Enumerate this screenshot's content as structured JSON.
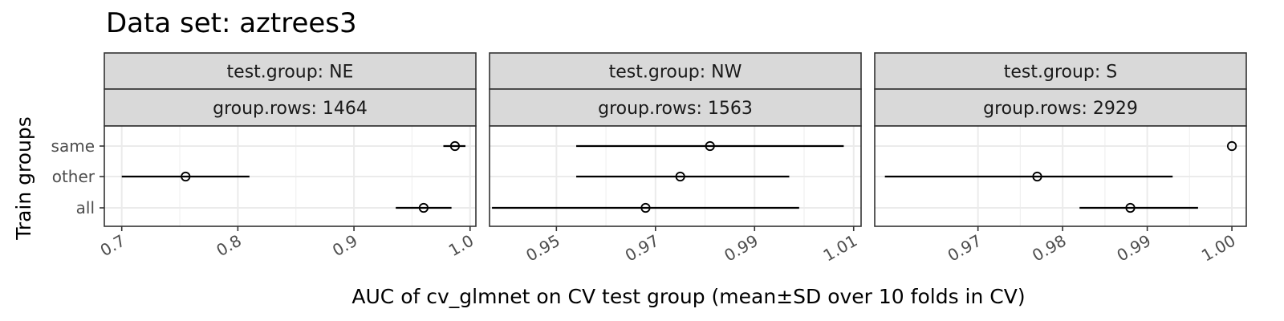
{
  "title": "Data set: aztrees3",
  "chart_data": {
    "type": "scatter",
    "subtype": "point-range facets",
    "xlabel": "AUC of cv_glmnet on CV test group (mean±SD over 10 folds in CV)",
    "ylabel": "Train groups",
    "categories": [
      "same",
      "other",
      "all"
    ],
    "grid": true,
    "panels": [
      {
        "strip1": "test.group: NE",
        "strip2": "group.rows: 1464",
        "xlim": [
          0.685,
          1.005
        ],
        "xticks": [
          0.7,
          0.8,
          0.9,
          1.0
        ],
        "xtick_labels": [
          "0.7",
          "0.8",
          "0.9",
          "1.0"
        ],
        "points": [
          {
            "group": "same",
            "mean": 0.987,
            "lo": 0.977,
            "hi": 0.996
          },
          {
            "group": "other",
            "mean": 0.755,
            "lo": 0.7,
            "hi": 0.81
          },
          {
            "group": "all",
            "mean": 0.96,
            "lo": 0.936,
            "hi": 0.984
          }
        ]
      },
      {
        "strip1": "test.group: NW",
        "strip2": "group.rows: 1563",
        "xlim": [
          0.9365,
          1.0115
        ],
        "xticks": [
          0.95,
          0.97,
          0.99,
          1.01
        ],
        "xtick_labels": [
          "0.95",
          "0.97",
          "0.99",
          "1.01"
        ],
        "points": [
          {
            "group": "same",
            "mean": 0.981,
            "lo": 0.954,
            "hi": 1.008
          },
          {
            "group": "other",
            "mean": 0.975,
            "lo": 0.954,
            "hi": 0.997
          },
          {
            "group": "all",
            "mean": 0.968,
            "lo": 0.937,
            "hi": 0.999
          }
        ]
      },
      {
        "strip1": "test.group: S",
        "strip2": "group.rows: 2929",
        "xlim": [
          0.9578,
          1.0017
        ],
        "xticks": [
          0.97,
          0.98,
          0.99,
          1.0
        ],
        "xtick_labels": [
          "0.97",
          "0.98",
          "0.99",
          "1.00"
        ],
        "points": [
          {
            "group": "same",
            "mean": 1.0,
            "lo": 1.0,
            "hi": 1.0
          },
          {
            "group": "other",
            "mean": 0.977,
            "lo": 0.959,
            "hi": 0.993
          },
          {
            "group": "all",
            "mean": 0.988,
            "lo": 0.982,
            "hi": 0.996
          }
        ]
      }
    ]
  }
}
